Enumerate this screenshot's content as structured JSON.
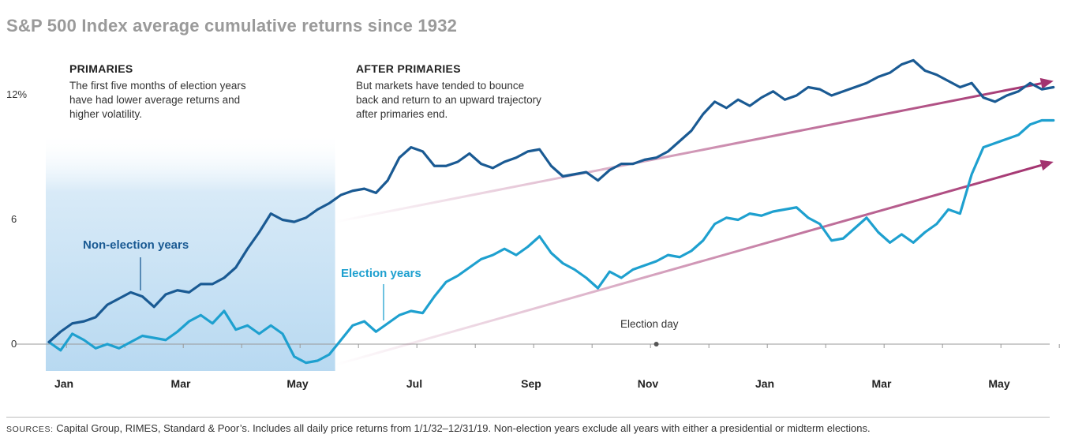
{
  "title": "S&P 500 Index average cumulative returns since 1932",
  "annotations": {
    "primaries_head": "PRIMARIES",
    "primaries_lines": [
      "The first five months of election years",
      "have had lower average returns and",
      "higher volatility."
    ],
    "after_head": "AFTER PRIMARIES",
    "after_lines": [
      "But markets have tended to bounce",
      "back and return to an upward trajectory",
      "after primaries end."
    ],
    "election_day": "Election day"
  },
  "footer": {
    "label": "SOURCES:",
    "text": " Capital Group, RIMES, Standard & Poor’s. Includes all daily price returns from 1/1/32–12/31/19. Non-election years exclude all years with either a presidential or midterm elections."
  },
  "colors": {
    "non_election": "#1a5a93",
    "election": "#1ea0cf",
    "arrow": "#a3326f",
    "shade_top": "#ffffff",
    "shade_bottom": "#b8d9f1",
    "axis": "#999999"
  },
  "chart_data": {
    "type": "line",
    "title": "S&P 500 Index average cumulative returns since 1932",
    "xlabel": "",
    "ylabel": "",
    "x_unit": "month index (0 = early Jan of election year, 17 = late Jun of following year)",
    "xlim": [
      -0.2,
      17.4
    ],
    "ylim": [
      -1.2,
      13.5
    ],
    "ytick_values": [
      0,
      6,
      12
    ],
    "yticks": [
      "0",
      "6",
      "12%"
    ],
    "xticks": [
      {
        "label": "Jan",
        "x": 0.3
      },
      {
        "label": "Mar",
        "x": 2.3
      },
      {
        "label": "May",
        "x": 4.3
      },
      {
        "label": "Jul",
        "x": 6.3
      },
      {
        "label": "Sep",
        "x": 8.3
      },
      {
        "label": "Nov",
        "x": 10.3
      },
      {
        "label": "Jan",
        "x": 12.3
      },
      {
        "label": "Mar",
        "x": 14.3
      },
      {
        "label": "May",
        "x": 16.3
      }
    ],
    "shaded_region": {
      "x0": 0,
      "x1": 4.9,
      "label": "Primaries"
    },
    "events": [
      {
        "label": "Election day",
        "x": 10.4
      }
    ],
    "legend": "direct labels on lines",
    "series": [
      {
        "name": "Non-election years",
        "x": [
          0,
          0.2,
          0.4,
          0.6,
          0.8,
          1.0,
          1.2,
          1.4,
          1.6,
          1.8,
          2.0,
          2.2,
          2.4,
          2.6,
          2.8,
          3.0,
          3.2,
          3.4,
          3.6,
          3.8,
          4.0,
          4.2,
          4.4,
          4.6,
          4.8,
          5.0,
          5.2,
          5.4,
          5.6,
          5.8,
          6.0,
          6.2,
          6.4,
          6.6,
          6.8,
          7.0,
          7.2,
          7.4,
          7.6,
          7.8,
          8.0,
          8.2,
          8.4,
          8.6,
          8.8,
          9.0,
          9.2,
          9.4,
          9.6,
          9.8,
          10.0,
          10.2,
          10.4,
          10.6,
          10.8,
          11.0,
          11.2,
          11.4,
          11.6,
          11.8,
          12.0,
          12.2,
          12.4,
          12.6,
          12.8,
          13.0,
          13.2,
          13.4,
          13.6,
          13.8,
          14.0,
          14.2,
          14.4,
          14.6,
          14.8,
          15.0,
          15.2,
          15.4,
          15.6,
          15.8,
          16.0,
          16.2,
          16.4,
          16.6,
          16.8,
          17.0,
          17.2
        ],
        "values": [
          0.1,
          0.6,
          1.0,
          1.1,
          1.3,
          1.9,
          2.2,
          2.5,
          2.3,
          1.8,
          2.4,
          2.6,
          2.5,
          2.9,
          2.9,
          3.2,
          3.7,
          4.6,
          5.4,
          6.3,
          6.0,
          5.9,
          6.1,
          6.5,
          6.8,
          7.2,
          7.4,
          7.5,
          7.3,
          7.9,
          9.0,
          9.5,
          9.3,
          8.6,
          8.6,
          8.8,
          9.2,
          8.7,
          8.5,
          8.8,
          9.0,
          9.3,
          9.4,
          8.6,
          8.1,
          8.2,
          8.3,
          7.9,
          8.4,
          8.7,
          8.7,
          8.9,
          9.0,
          9.3,
          9.8,
          10.3,
          11.1,
          11.7,
          11.4,
          11.8,
          11.5,
          11.9,
          12.2,
          11.8,
          12.0,
          12.4,
          12.3,
          12.0,
          12.2,
          12.4,
          12.6,
          12.9,
          13.1,
          13.5,
          13.7,
          13.2,
          13.0,
          12.7,
          12.4,
          12.6,
          11.9,
          11.7,
          12.0,
          12.2,
          12.6,
          12.3,
          12.4
        ]
      },
      {
        "name": "Election years",
        "x": [
          0,
          0.2,
          0.4,
          0.6,
          0.8,
          1.0,
          1.2,
          1.4,
          1.6,
          1.8,
          2.0,
          2.2,
          2.4,
          2.6,
          2.8,
          3.0,
          3.2,
          3.4,
          3.6,
          3.8,
          4.0,
          4.2,
          4.4,
          4.6,
          4.8,
          5.0,
          5.2,
          5.4,
          5.6,
          5.8,
          6.0,
          6.2,
          6.4,
          6.6,
          6.8,
          7.0,
          7.2,
          7.4,
          7.6,
          7.8,
          8.0,
          8.2,
          8.4,
          8.6,
          8.8,
          9.0,
          9.2,
          9.4,
          9.6,
          9.8,
          10.0,
          10.2,
          10.4,
          10.6,
          10.8,
          11.0,
          11.2,
          11.4,
          11.6,
          11.8,
          12.0,
          12.2,
          12.4,
          12.6,
          12.8,
          13.0,
          13.2,
          13.4,
          13.6,
          13.8,
          14.0,
          14.2,
          14.4,
          14.6,
          14.8,
          15.0,
          15.2,
          15.4,
          15.6,
          15.8,
          16.0,
          16.2,
          16.4,
          16.6,
          16.8,
          17.0,
          17.2
        ],
        "values": [
          0.1,
          -0.3,
          0.5,
          0.2,
          -0.2,
          0.0,
          -0.2,
          0.1,
          0.4,
          0.3,
          0.2,
          0.6,
          1.1,
          1.4,
          1.0,
          1.6,
          0.7,
          0.9,
          0.5,
          0.9,
          0.5,
          -0.6,
          -0.9,
          -0.8,
          -0.5,
          0.2,
          0.9,
          1.1,
          0.6,
          1.0,
          1.4,
          1.6,
          1.5,
          2.3,
          3.0,
          3.3,
          3.7,
          4.1,
          4.3,
          4.6,
          4.3,
          4.7,
          5.2,
          4.4,
          3.9,
          3.6,
          3.2,
          2.7,
          3.5,
          3.2,
          3.6,
          3.8,
          4.0,
          4.3,
          4.2,
          4.5,
          5.0,
          5.8,
          6.1,
          6.0,
          6.3,
          6.2,
          6.4,
          6.5,
          6.6,
          6.1,
          5.8,
          5.0,
          5.1,
          5.6,
          6.1,
          5.4,
          4.9,
          5.3,
          4.9,
          5.4,
          5.8,
          6.5,
          6.3,
          8.2,
          9.5,
          9.7,
          9.9,
          10.1,
          10.6,
          10.8,
          10.8
        ]
      }
    ],
    "trend_arrows": [
      {
        "from": [
          4.9,
          5.9
        ],
        "to": [
          17.2,
          12.7
        ]
      },
      {
        "from": [
          4.9,
          -1.0
        ],
        "to": [
          17.2,
          8.8
        ]
      }
    ]
  }
}
